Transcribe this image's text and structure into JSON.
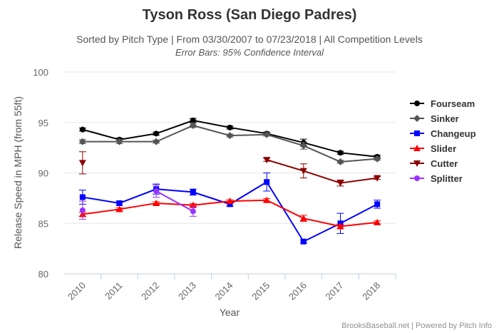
{
  "chart_data": {
    "type": "line",
    "title": "Tyson Ross (San Diego Padres)",
    "subtitle": "Sorted by Pitch Type | From 03/30/2007 to 07/23/2018 | All Competition Levels",
    "subtitle2": "Error Bars: 95% Confidence Interval",
    "xlabel": "Year",
    "ylabel": "Release Speed in MPH (from 55ft)",
    "categories": [
      "2010",
      "2011",
      "2012",
      "2013",
      "2014",
      "2015",
      "2016",
      "2017",
      "2018"
    ],
    "yticks": [
      80,
      85,
      90,
      95,
      100
    ],
    "ylim": [
      80,
      100
    ],
    "grid": true,
    "legend_position": "right",
    "credits": "BrooksBaseball.net | Powered by Pitch Info",
    "series": [
      {
        "name": "Fourseam",
        "color": "#000000",
        "marker": "circle",
        "values": [
          94.3,
          93.3,
          93.9,
          95.2,
          94.5,
          93.9,
          93.0,
          92.0,
          91.6
        ],
        "err": [
          0.15,
          0.15,
          0.15,
          0.2,
          0.15,
          0.15,
          0.35,
          0.15,
          0.15
        ]
      },
      {
        "name": "Sinker",
        "color": "#555555",
        "marker": "diamond",
        "values": [
          93.1,
          93.1,
          93.1,
          94.7,
          93.7,
          93.8,
          92.7,
          91.1,
          91.4
        ],
        "err": [
          0.2,
          0.2,
          0.15,
          0.2,
          0.15,
          0.15,
          0.35,
          0.15,
          0.15
        ]
      },
      {
        "name": "Changeup",
        "color": "#0000ff",
        "marker": "square",
        "values": [
          87.6,
          87.0,
          88.4,
          88.1,
          86.9,
          89.1,
          83.2,
          85.0,
          86.9
        ],
        "err": [
          0.7,
          0.2,
          0.5,
          0.3,
          0.2,
          0.9,
          0.15,
          1.0,
          0.4
        ]
      },
      {
        "name": "Slider",
        "color": "#ff0000",
        "marker": "triangle",
        "values": [
          85.9,
          86.4,
          87.0,
          86.8,
          87.2,
          87.3,
          85.5,
          84.7,
          85.1
        ],
        "err": [
          0.2,
          0.15,
          0.15,
          0.15,
          0.15,
          0.15,
          0.3,
          0.2,
          0.15
        ]
      },
      {
        "name": "Cutter",
        "color": "#8b0000",
        "marker": "triangle-down",
        "values": [
          91.0,
          null,
          null,
          null,
          null,
          91.3,
          90.2,
          89.0,
          89.5
        ],
        "err": [
          1.1,
          null,
          null,
          null,
          null,
          0.15,
          0.7,
          0.3,
          0.15
        ]
      },
      {
        "name": "Splitter",
        "color": "#9933ff",
        "marker": "circle",
        "values": [
          86.3,
          null,
          88.2,
          86.2,
          null,
          null,
          null,
          null,
          null
        ],
        "err": [
          0.9,
          null,
          0.6,
          0.5,
          null,
          null,
          null,
          null,
          null
        ]
      }
    ]
  }
}
